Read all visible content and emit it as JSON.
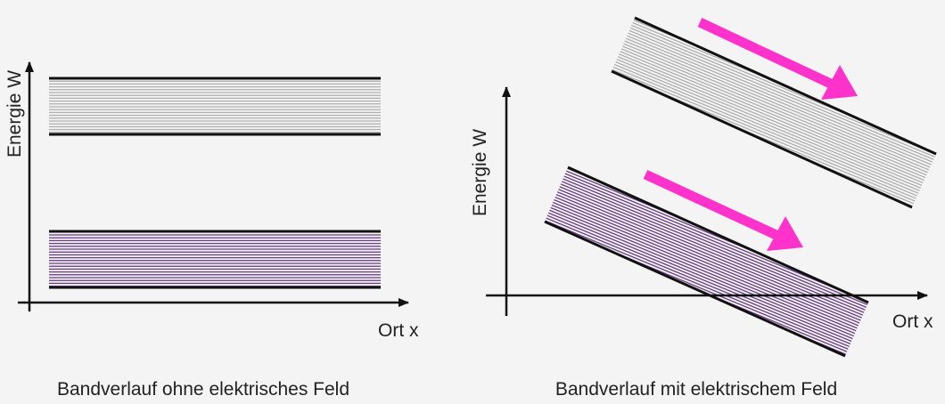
{
  "left_panel": {
    "y_axis_label": "Energie W",
    "x_axis_label": "Ort x",
    "caption": "Bandverlauf ohne elektrisches Feld"
  },
  "right_panel": {
    "y_axis_label": "Energie W",
    "x_axis_label": "Ort x",
    "caption": "Bandverlauf mit elektrischem Feld"
  },
  "colors": {
    "background": "#f4f4f4",
    "axis": "#111111",
    "band_edge": "#111111",
    "conduction_band_hatch": "#9a9a9a",
    "valence_band_hatch": "#5a2a78",
    "arrow": "#ff33cc"
  }
}
